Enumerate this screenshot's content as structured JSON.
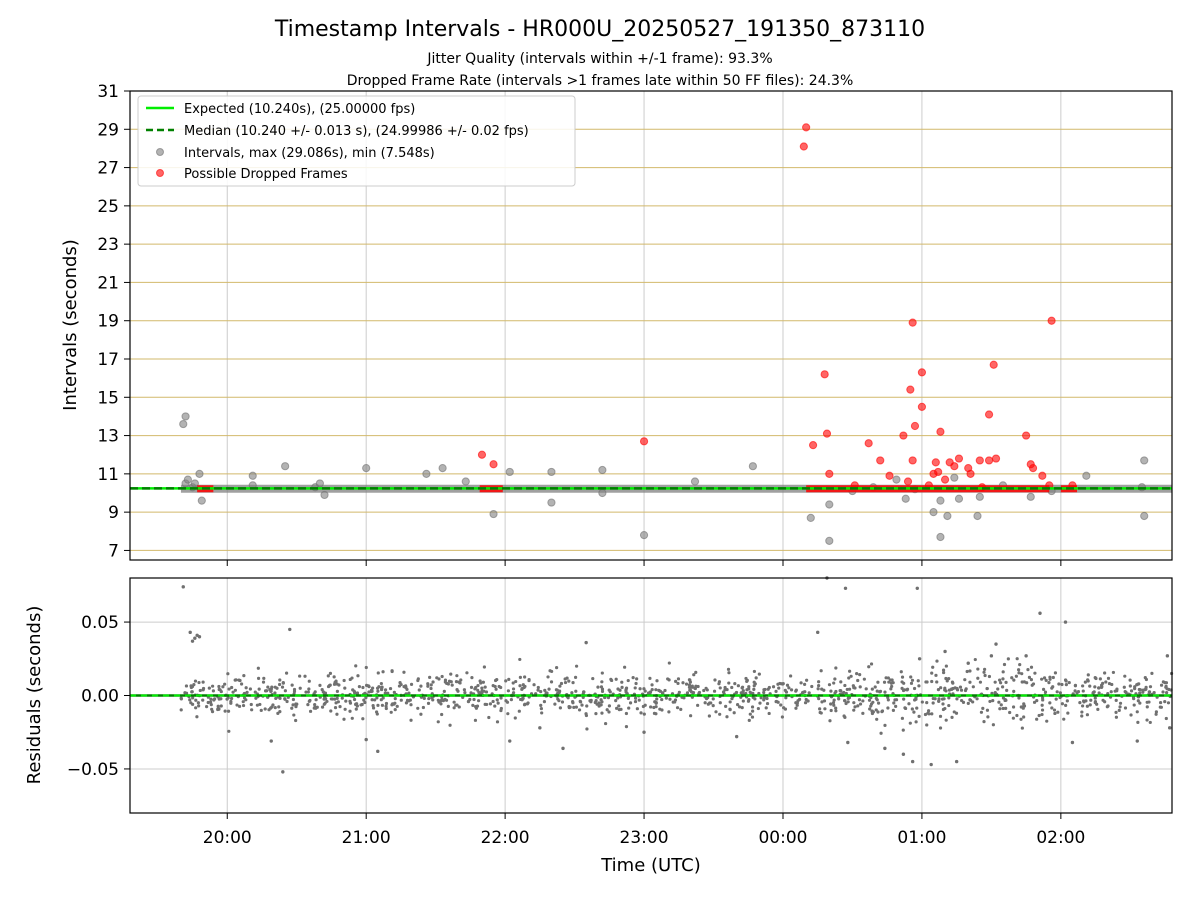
{
  "chart_data": [
    {
      "type": "scatter",
      "title": "Timestamp Intervals - HR000U_20250527_191350_873110",
      "subtitle_lines": [
        "Jitter Quality (intervals within +/-1 frame): 93.3%",
        "Dropped Frame Rate (intervals >1 frames late within 50 FF files): 24.3%"
      ],
      "xlabel": "",
      "ylabel": "Intervals (seconds)",
      "xlim": [
        "19:18",
        "02:48"
      ],
      "ylim": [
        6.5,
        31
      ],
      "y_ticks": [
        "7",
        "9",
        "11",
        "13",
        "15",
        "17",
        "19",
        "21",
        "23",
        "25",
        "27",
        "29",
        "31"
      ],
      "grid": "on",
      "legend_position": "top-left",
      "legend": [
        "Expected (10.240s), (25.00000 fps)",
        "Median (10.240 +/- 0.013 s), (24.99986 +/- 0.02 fps)",
        "Intervals, max (29.086s), min (7.548s)",
        "Possible Dropped Frames"
      ],
      "expected_value": 10.24,
      "median_value": 10.24,
      "colors": {
        "expected_line": "#00ee00",
        "median_line": "#008000",
        "intervals": "#808080",
        "dropped": "#ff0000",
        "grid_h": "#d2b96b",
        "grid_v": "#cccccc"
      },
      "series": [
        {
          "name": "Intervals, max (29.086s), min (7.548s)",
          "points": [
            [
              "19:41",
              13.6
            ],
            [
              "19:42",
              14.0
            ],
            [
              "19:42",
              10.5
            ],
            [
              "19:43",
              10.7
            ],
            [
              "19:45",
              10.3
            ],
            [
              "19:46",
              10.5
            ],
            [
              "19:48",
              11.0
            ],
            [
              "19:49",
              9.6
            ],
            [
              "20:11",
              10.9
            ],
            [
              "20:11",
              10.4
            ],
            [
              "20:25",
              11.4
            ],
            [
              "20:38",
              10.3
            ],
            [
              "20:40",
              10.5
            ],
            [
              "20:42",
              9.9
            ],
            [
              "21:00",
              11.3
            ],
            [
              "21:26",
              11.0
            ],
            [
              "21:33",
              11.3
            ],
            [
              "21:43",
              10.6
            ],
            [
              "21:55",
              8.9
            ],
            [
              "22:02",
              11.1
            ],
            [
              "22:20",
              11.1
            ],
            [
              "22:20",
              9.5
            ],
            [
              "22:42",
              11.2
            ],
            [
              "22:42",
              10.0
            ],
            [
              "23:00",
              7.8
            ],
            [
              "23:22",
              10.6
            ],
            [
              "23:47",
              11.4
            ],
            [
              "00:12",
              8.7
            ],
            [
              "00:20",
              9.4
            ],
            [
              "00:20",
              7.5
            ],
            [
              "00:30",
              10.1
            ],
            [
              "00:39",
              10.3
            ],
            [
              "00:49",
              10.7
            ],
            [
              "00:53",
              9.7
            ],
            [
              "00:57",
              10.2
            ],
            [
              "01:05",
              9.0
            ],
            [
              "01:08",
              9.6
            ],
            [
              "01:08",
              7.7
            ],
            [
              "01:11",
              8.8
            ],
            [
              "01:14",
              10.8
            ],
            [
              "01:16",
              9.7
            ],
            [
              "01:24",
              8.8
            ],
            [
              "01:25",
              9.8
            ],
            [
              "01:35",
              10.4
            ],
            [
              "01:47",
              9.8
            ],
            [
              "01:56",
              10.1
            ],
            [
              "02:11",
              10.9
            ],
            [
              "02:35",
              10.3
            ],
            [
              "02:36",
              11.7
            ],
            [
              "02:36",
              8.8
            ]
          ]
        },
        {
          "name": "Possible Dropped Frames",
          "points": [
            [
              "21:50",
              12.0
            ],
            [
              "21:55",
              11.5
            ],
            [
              "23:00",
              12.7
            ],
            [
              "00:10",
              29.1
            ],
            [
              "00:09",
              28.1
            ],
            [
              "00:13",
              12.5
            ],
            [
              "00:18",
              16.2
            ],
            [
              "00:19",
              13.1
            ],
            [
              "00:20",
              11.0
            ],
            [
              "00:31",
              10.4
            ],
            [
              "00:37",
              12.6
            ],
            [
              "00:42",
              11.7
            ],
            [
              "00:46",
              10.9
            ],
            [
              "00:52",
              13.0
            ],
            [
              "00:54",
              10.6
            ],
            [
              "00:56",
              11.7
            ],
            [
              "00:55",
              15.4
            ],
            [
              "00:56",
              18.9
            ],
            [
              "00:57",
              13.5
            ],
            [
              "01:00",
              14.5
            ],
            [
              "01:00",
              16.3
            ],
            [
              "01:03",
              10.4
            ],
            [
              "01:05",
              11.0
            ],
            [
              "01:06",
              11.6
            ],
            [
              "01:07",
              11.1
            ],
            [
              "01:10",
              10.7
            ],
            [
              "01:08",
              13.2
            ],
            [
              "01:12",
              11.6
            ],
            [
              "01:14",
              11.4
            ],
            [
              "01:16",
              11.8
            ],
            [
              "01:20",
              11.3
            ],
            [
              "01:21",
              11.0
            ],
            [
              "01:25",
              11.7
            ],
            [
              "01:26",
              10.3
            ],
            [
              "01:29",
              14.1
            ],
            [
              "01:29",
              11.7
            ],
            [
              "01:31",
              16.7
            ],
            [
              "01:32",
              11.8
            ],
            [
              "01:45",
              13.0
            ],
            [
              "01:47",
              11.5
            ],
            [
              "01:48",
              11.3
            ],
            [
              "01:52",
              10.9
            ],
            [
              "01:55",
              10.4
            ],
            [
              "01:56",
              19.0
            ],
            [
              "02:05",
              10.4
            ]
          ]
        }
      ],
      "baseline_band": {
        "intervals_segments": [
          [
            "19:40",
            "02:48"
          ]
        ],
        "dropped_segments": [
          [
            "19:47",
            "19:54"
          ],
          [
            "21:49",
            "21:59"
          ],
          [
            "00:10",
            "01:55"
          ],
          [
            "02:00",
            "02:07"
          ]
        ],
        "value": 10.22
      }
    },
    {
      "type": "scatter",
      "title": "",
      "xlabel": "Time (UTC)",
      "ylabel": "Residuals (seconds)",
      "xlim": [
        "19:18",
        "02:48"
      ],
      "ylim": [
        -0.08,
        0.08
      ],
      "y_ticks": [
        "−0.05",
        "0.00",
        "0.05"
      ],
      "x_ticks": [
        "20:00",
        "21:00",
        "22:00",
        "23:00",
        "00:00",
        "01:00",
        "02:00"
      ],
      "grid": "on",
      "baseline_value": 0.0,
      "colors": {
        "points": "#707070",
        "baseline_median": "#008000",
        "baseline_expected": "#00ee00",
        "grid": "#cccccc"
      },
      "outliers": [
        [
          "19:41",
          0.074
        ],
        [
          "19:44",
          0.043
        ],
        [
          "19:45",
          0.037
        ],
        [
          "19:46",
          0.039
        ],
        [
          "19:47",
          0.041
        ],
        [
          "19:48",
          0.04
        ],
        [
          "20:27",
          0.045
        ],
        [
          "20:24",
          -0.052
        ],
        [
          "20:19",
          -0.031
        ],
        [
          "21:00",
          -0.03
        ],
        [
          "21:05",
          -0.038
        ],
        [
          "22:02",
          -0.031
        ],
        [
          "22:15",
          -0.022
        ],
        [
          "22:25",
          -0.036
        ],
        [
          "22:35",
          0.036
        ],
        [
          "23:00",
          -0.025
        ],
        [
          "23:40",
          -0.028
        ],
        [
          "00:15",
          0.043
        ],
        [
          "00:19",
          0.08
        ],
        [
          "00:27",
          0.073
        ],
        [
          "00:28",
          -0.032
        ],
        [
          "00:44",
          -0.036
        ],
        [
          "00:52",
          -0.04
        ],
        [
          "00:56",
          -0.045
        ],
        [
          "00:58",
          0.073
        ],
        [
          "00:59",
          0.025
        ],
        [
          "01:04",
          -0.047
        ],
        [
          "01:10",
          0.03
        ],
        [
          "01:15",
          -0.045
        ],
        [
          "01:20",
          0.022
        ],
        [
          "01:30",
          0.027
        ],
        [
          "01:32",
          0.035
        ],
        [
          "01:45",
          0.027
        ],
        [
          "01:51",
          0.056
        ],
        [
          "02:02",
          0.05
        ],
        [
          "02:05",
          -0.032
        ],
        [
          "02:33",
          -0.031
        ],
        [
          "02:47",
          -0.022
        ],
        [
          "02:46",
          0.027
        ]
      ],
      "spread_bands": [
        {
          "from": "19:40",
          "to": "20:00",
          "sd": 0.006
        },
        {
          "from": "20:00",
          "to": "21:00",
          "sd": 0.007
        },
        {
          "from": "21:00",
          "to": "22:00",
          "sd": 0.007
        },
        {
          "from": "22:00",
          "to": "23:00",
          "sd": 0.008
        },
        {
          "from": "23:00",
          "to": "00:00",
          "sd": 0.007
        },
        {
          "from": "00:00",
          "to": "01:00",
          "sd": 0.009
        },
        {
          "from": "01:00",
          "to": "02:00",
          "sd": 0.011
        },
        {
          "from": "02:00",
          "to": "02:48",
          "sd": 0.007
        }
      ]
    }
  ]
}
